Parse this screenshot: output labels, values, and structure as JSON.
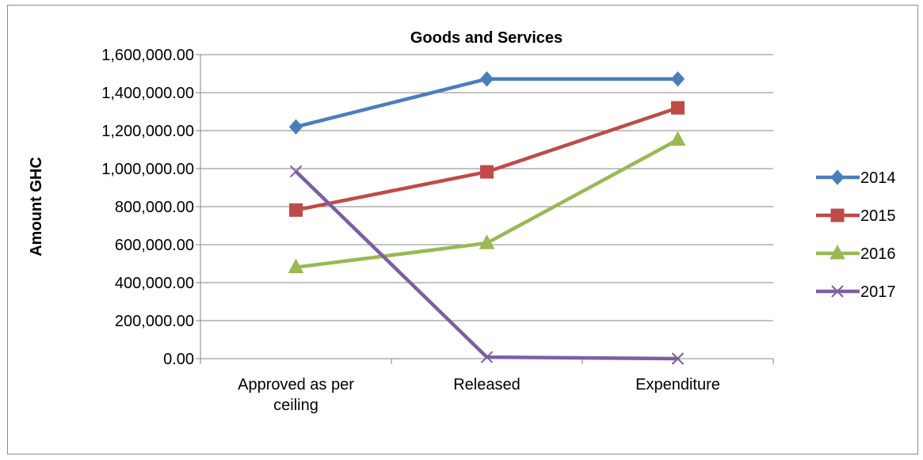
{
  "chart_data": {
    "type": "line",
    "title": "Goods and Services",
    "ylabel": "Amount GHC",
    "xlabel": "",
    "categories": [
      [
        "Approved as per",
        "ceiling"
      ],
      [
        "Released"
      ],
      [
        "Expenditure"
      ]
    ],
    "ylim": [
      0,
      1600000
    ],
    "ytick_step": 200000,
    "ytick_labels": [
      "0.00",
      "200,000.00",
      "400,000.00",
      "600,000.00",
      "800,000.00",
      "1,000,000.00",
      "1,200,000.00",
      "1,400,000.00",
      "1,600,000.00"
    ],
    "grid": true,
    "legend": "right",
    "series": [
      {
        "name": "2014",
        "values": [
          1220000,
          1472000,
          1472000
        ],
        "color": "#4a7ebb",
        "marker": "diamond"
      },
      {
        "name": "2015",
        "values": [
          782000,
          983000,
          1320000
        ],
        "color": "#be4b48",
        "marker": "square"
      },
      {
        "name": "2016",
        "values": [
          481000,
          608000,
          1152000
        ],
        "color": "#98b954",
        "marker": "triangle"
      },
      {
        "name": "2017",
        "values": [
          985000,
          8000,
          0
        ],
        "color": "#7d5fa0",
        "marker": "x"
      }
    ]
  }
}
